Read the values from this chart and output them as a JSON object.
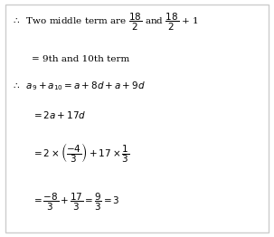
{
  "background_color": "#ffffff",
  "figsize": [
    3.03,
    2.62
  ],
  "dpi": 100,
  "border_color": "#cccccc",
  "fs": 7.5
}
